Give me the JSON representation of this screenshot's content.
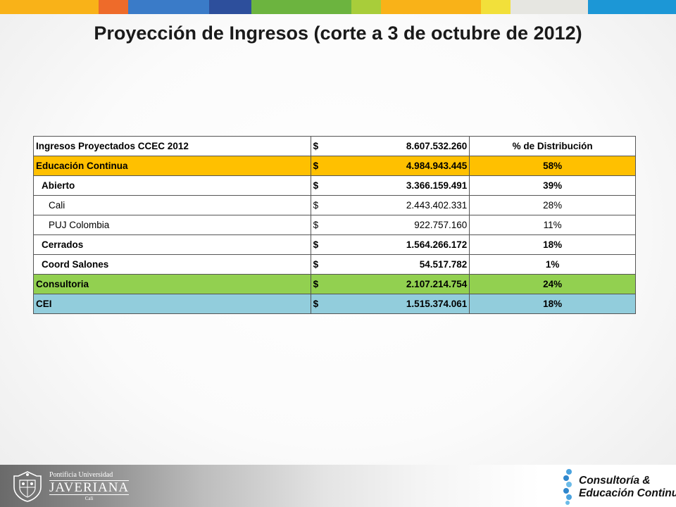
{
  "topbar": {
    "colors": [
      "#f9b218",
      "#ee6b2a",
      "#3a7bc8",
      "#2d4f9c",
      "#6cb43f",
      "#a8cd3a",
      "#f9b218",
      "#f2e03a",
      "#e6e6e1",
      "#1c97d6"
    ]
  },
  "slide": {
    "title": "Proyección de Ingresos (corte a 3 de octubre de 2012)"
  },
  "table": {
    "rows": [
      {
        "label": "Ingresos  Proyectados CCEC 2012",
        "currency": "$",
        "amount": "8.607.532.260",
        "pct": "% de Distribución"
      },
      {
        "label": "Educación Continua",
        "currency": "$",
        "amount": "4.984.943.445",
        "pct": "58%"
      },
      {
        "label": "Abierto",
        "currency": "$",
        "amount": "3.366.159.491",
        "pct": "39%"
      },
      {
        "label": "Cali",
        "currency": "$",
        "amount": "2.443.402.331",
        "pct": "28%"
      },
      {
        "label": "PUJ Colombia",
        "currency": "$",
        "amount": "922.757.160",
        "pct": "11%"
      },
      {
        "label": "Cerrados",
        "currency": "$",
        "amount": "1.564.266.172",
        "pct": "18%"
      },
      {
        "label": "Coord Salones",
        "currency": "$",
        "amount": "54.517.782",
        "pct": "1%"
      },
      {
        "label": "Consultoria",
        "currency": "$",
        "amount": "2.107.214.754",
        "pct": "24%"
      },
      {
        "label": "CEI",
        "currency": "$",
        "amount": "1.515.374.061",
        "pct": "18%"
      }
    ]
  },
  "footer": {
    "left_logo": {
      "line1": "Pontificia Universidad",
      "line2": "JAVERIANA",
      "line3": "Cali",
      "icon": "crest-icon"
    },
    "right_logo": {
      "line1": "Consultoría &",
      "line2": "Educación Continua",
      "icon": "dots-icon",
      "dot_colors": [
        "#4aa3df",
        "#2f86cc",
        "#6cbbe8",
        "#2f86cc",
        "#4aa3df",
        "#6cbbe8"
      ]
    }
  }
}
